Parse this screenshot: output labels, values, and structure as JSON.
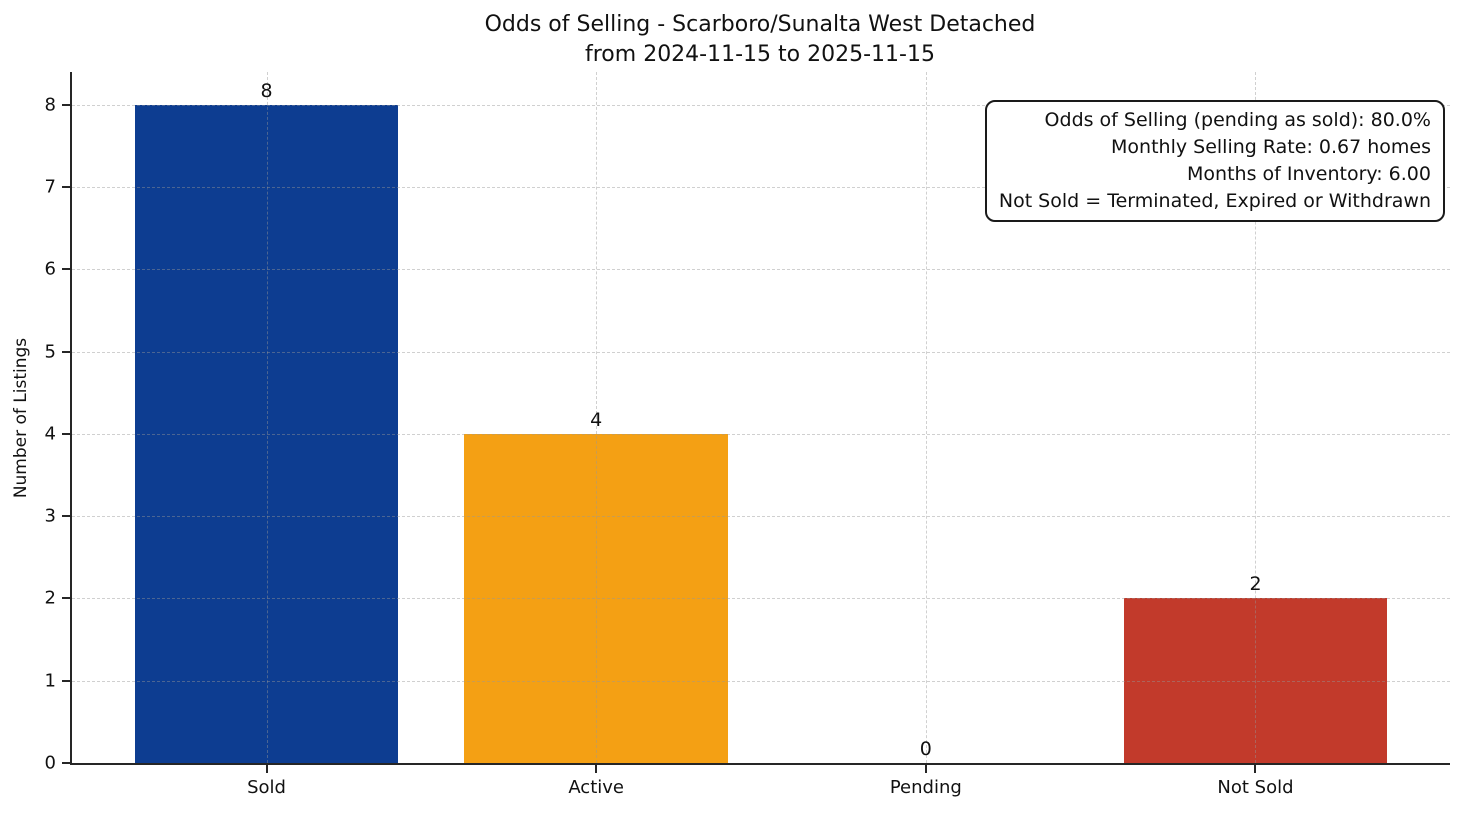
{
  "chart_data": {
    "type": "bar",
    "title": "Odds of Selling - Scarboro/Sunalta West Detached\nfrom 2024-11-15 to 2025-11-15",
    "xlabel": "",
    "ylabel": "Number of Listings",
    "categories": [
      "Sold",
      "Active",
      "Pending",
      "Not Sold"
    ],
    "values": [
      8,
      4,
      0,
      2
    ],
    "bar_value_labels": [
      "8",
      "4",
      "0",
      "2"
    ],
    "bar_colors": [
      "#0d3d91",
      "#f4a014",
      null,
      "#c23a2b"
    ],
    "bar_width_ratio": 0.8,
    "ylim": [
      0,
      8.4
    ],
    "xlim": [
      -0.59,
      3.59
    ],
    "yticks": [
      0,
      1,
      2,
      3,
      4,
      5,
      6,
      7,
      8
    ],
    "grid": true,
    "grid_style": "dashed",
    "legend_position": "none",
    "annotation_lines": [
      "Odds of Selling (pending as sold): 80.0%",
      "Monthly Selling Rate: 0.67 homes",
      "Months of Inventory: 6.00",
      "Not Sold = Terminated, Expired or Withdrawn"
    ]
  },
  "colors": {
    "axis": "#262626",
    "grid": "#d7d7d7",
    "text": "#111111",
    "background": "#ffffff"
  }
}
